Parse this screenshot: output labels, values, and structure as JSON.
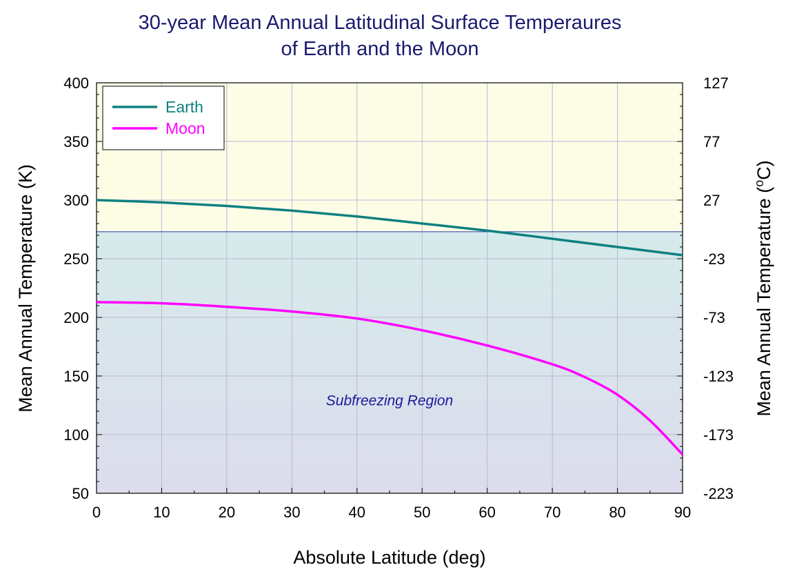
{
  "chart_data": {
    "type": "line",
    "title_line1": "30-year Mean Annual Latitudinal Surface Temperaures",
    "title_line2": "of Earth and the Moon",
    "xlabel": "Absolute Latitude (deg)",
    "ylabel": "Mean Annual Temperature (K)",
    "ylabel_right_main": "Mean Annual Temperature (",
    "ylabel_right_sup": "o",
    "ylabel_right_unit": "C)",
    "xlim": [
      0,
      90
    ],
    "ylim": [
      50,
      400
    ],
    "x_ticks": [
      0,
      10,
      20,
      30,
      40,
      50,
      60,
      70,
      80,
      90
    ],
    "y_ticks": [
      50,
      100,
      150,
      200,
      250,
      300,
      350,
      400
    ],
    "y2_ticks": [
      {
        "value": 50,
        "label": "-223"
      },
      {
        "value": 100,
        "label": "-173"
      },
      {
        "value": 150,
        "label": "-123"
      },
      {
        "value": 200,
        "label": "-73"
      },
      {
        "value": 250,
        "label": "-23"
      },
      {
        "value": 300,
        "label": "27"
      },
      {
        "value": 350,
        "label": "77"
      },
      {
        "value": 400,
        "label": "127"
      }
    ],
    "grid": true,
    "legend_position": "top-left",
    "freezing_level": 273,
    "annotation": {
      "text": "Subfreezing Region",
      "x": 45,
      "y": 125
    },
    "colors": {
      "earth": "#0e8080",
      "moon": "#ff00ff",
      "above_region": "#fdfde6",
      "subfreezing_top": "#d6ebeb",
      "subfreezing_bottom": "#dcdcec",
      "grid": "#b8b8d4",
      "freezing_line": "#2a3aa0",
      "title": "#1a1a6e"
    },
    "series": [
      {
        "name": "Earth",
        "x": [
          0,
          10,
          20,
          30,
          40,
          50,
          60,
          70,
          80,
          90
        ],
        "y": [
          300,
          298,
          295,
          291,
          286,
          280,
          274,
          267,
          260,
          253
        ]
      },
      {
        "name": "Moon",
        "x": [
          0,
          10,
          20,
          30,
          40,
          50,
          60,
          70,
          75,
          80,
          85,
          90
        ],
        "y": [
          213,
          212,
          209,
          205,
          199,
          189,
          176,
          160,
          149,
          134,
          112,
          83
        ]
      }
    ]
  }
}
